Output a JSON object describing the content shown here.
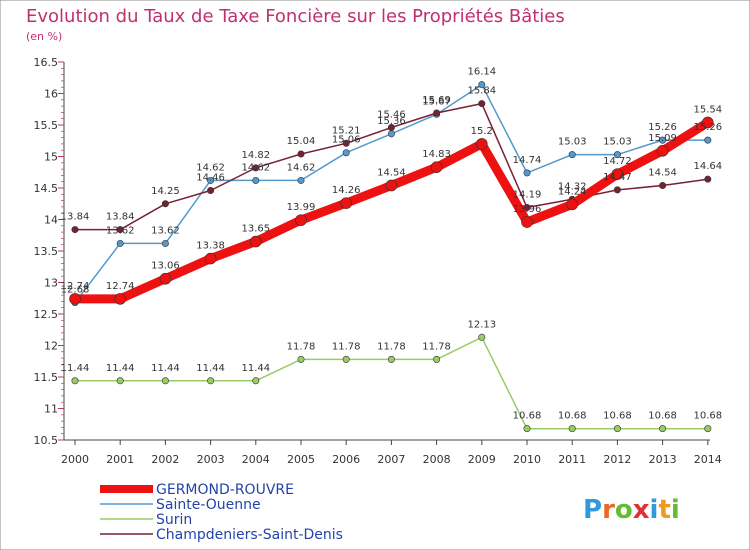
{
  "header": {
    "title": "Evolution du Taux de Taxe Foncière sur les Propriétés Bâties",
    "unit": "(en %)"
  },
  "brand": {
    "letters": [
      "P",
      "r",
      "o",
      "x",
      "i",
      "t",
      "i"
    ],
    "colors": [
      "#3399dd",
      "#ee6622",
      "#66bb33",
      "#dd3333",
      "#3399dd",
      "#ee9922",
      "#66bb33"
    ]
  },
  "chart_data": {
    "type": "line",
    "title": "Evolution du Taux de Taxe Foncière sur les Propriétés Bâties",
    "ylabel": "(en %)",
    "xlabel": "",
    "ylim": [
      10.5,
      16.5
    ],
    "yticks": [
      "10.5",
      "11",
      "11.5",
      "12",
      "12.5",
      "13",
      "13.5",
      "14",
      "14.5",
      "15",
      "15.5",
      "16",
      "16.5"
    ],
    "categories": [
      "2000",
      "2001",
      "2002",
      "2003",
      "2004",
      "2005",
      "2006",
      "2007",
      "2008",
      "2009",
      "2010",
      "2011",
      "2012",
      "2013",
      "2014"
    ],
    "grid": false,
    "legend_position": "bottom-left",
    "series": [
      {
        "name": "GERMOND-ROUVRE",
        "color": "#ee1111",
        "width": 9,
        "values": [
          12.74,
          12.74,
          13.06,
          13.38,
          13.65,
          13.99,
          14.26,
          14.54,
          14.83,
          15.2,
          13.96,
          14.24,
          14.72,
          15.09,
          15.54
        ],
        "labels": [
          "12.74",
          "12.74",
          "13.06",
          "13.38",
          "13.65",
          "13.99",
          "14.26",
          "14.54",
          "14.83",
          "15.2",
          "13.96",
          "14.24",
          "14.72",
          "15.09",
          "15.54"
        ]
      },
      {
        "name": "Sainte-Ouenne",
        "color": "#5599cc",
        "width": 1.5,
        "values": [
          12.68,
          13.62,
          13.62,
          14.62,
          14.62,
          14.62,
          15.06,
          15.36,
          15.67,
          16.14,
          14.74,
          15.03,
          15.03,
          15.26,
          15.26
        ],
        "labels": [
          "12.68",
          "13.62",
          "13.62",
          "14.62",
          "14.62",
          "14.62",
          "15.06",
          "15.36",
          "15.67",
          "16.14",
          "14.74",
          "15.03",
          "15.03",
          "15.26",
          "15.26"
        ]
      },
      {
        "name": "Surin",
        "color": "#99cc66",
        "width": 1.5,
        "values": [
          11.44,
          11.44,
          11.44,
          11.44,
          11.44,
          11.78,
          11.78,
          11.78,
          11.78,
          12.13,
          10.68,
          10.68,
          10.68,
          10.68,
          10.68
        ],
        "labels": [
          "11.44",
          "11.44",
          "11.44",
          "11.44",
          "11.44",
          "11.78",
          "11.78",
          "11.78",
          "11.78",
          "12.13",
          "10.68",
          "10.68",
          "10.68",
          "10.68",
          "10.68"
        ]
      },
      {
        "name": "Champdeniers-Saint-Denis",
        "color": "#772233",
        "width": 1.5,
        "values": [
          13.84,
          13.84,
          14.25,
          14.46,
          14.82,
          15.04,
          15.21,
          15.46,
          15.69,
          15.84,
          14.19,
          14.32,
          14.47,
          14.54,
          14.64
        ],
        "labels": [
          "13.84",
          "13.84",
          "14.25",
          "14.46",
          "14.82",
          "15.04",
          "15.21",
          "15.46",
          "15.69",
          "15.84",
          "14.19",
          "14.32",
          "14.47",
          "14.54",
          "14.64"
        ]
      }
    ]
  }
}
